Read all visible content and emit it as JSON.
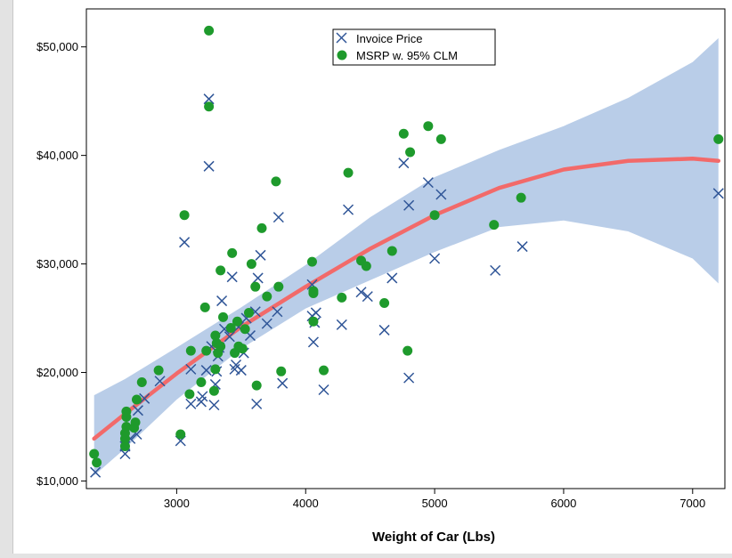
{
  "chart_data": {
    "type": "scatter",
    "xlabel": "Weight of Car (Lbs)",
    "ylabel": "",
    "xlim": [
      2300,
      7250
    ],
    "ylim": [
      9300,
      53500
    ],
    "x_ticks": [
      {
        "value": 3000,
        "label": "3000"
      },
      {
        "value": 4000,
        "label": "4000"
      },
      {
        "value": 5000,
        "label": "5000"
      },
      {
        "value": 6000,
        "label": "6000"
      },
      {
        "value": 7000,
        "label": "7000"
      }
    ],
    "y_ticks": [
      {
        "value": 10000,
        "label": "$10,000"
      },
      {
        "value": 20000,
        "label": "$20,000"
      },
      {
        "value": 30000,
        "label": "$30,000"
      },
      {
        "value": 40000,
        "label": "$40,000"
      },
      {
        "value": 50000,
        "label": "$50,000"
      }
    ],
    "grid": false,
    "legend": {
      "position": "top-center"
    },
    "series": [
      {
        "name": "Invoice Price",
        "marker": "x",
        "color": "#2f5597",
        "points": [
          [
            2370,
            10800
          ],
          [
            2600,
            12500
          ],
          [
            2600,
            13200
          ],
          [
            2640,
            13900
          ],
          [
            2690,
            14300
          ],
          [
            2700,
            16500
          ],
          [
            2750,
            17600
          ],
          [
            2870,
            19200
          ],
          [
            3030,
            13700
          ],
          [
            3060,
            32000
          ],
          [
            3110,
            20300
          ],
          [
            3110,
            17100
          ],
          [
            3190,
            17300
          ],
          [
            3200,
            17800
          ],
          [
            3230,
            20200
          ],
          [
            3250,
            45200
          ],
          [
            3250,
            39000
          ],
          [
            3270,
            22400
          ],
          [
            3290,
            17000
          ],
          [
            3300,
            18900
          ],
          [
            3310,
            20100
          ],
          [
            3320,
            21500
          ],
          [
            3330,
            22300
          ],
          [
            3350,
            26600
          ],
          [
            3370,
            24000
          ],
          [
            3410,
            23300
          ],
          [
            3430,
            28800
          ],
          [
            3450,
            20300
          ],
          [
            3460,
            20700
          ],
          [
            3480,
            24200
          ],
          [
            3500,
            20200
          ],
          [
            3520,
            21800
          ],
          [
            3540,
            25000
          ],
          [
            3570,
            23400
          ],
          [
            3610,
            25600
          ],
          [
            3620,
            17100
          ],
          [
            3630,
            28700
          ],
          [
            3650,
            30800
          ],
          [
            3700,
            24500
          ],
          [
            3780,
            25600
          ],
          [
            3790,
            34300
          ],
          [
            3820,
            19000
          ],
          [
            4050,
            28100
          ],
          [
            4050,
            25200
          ],
          [
            4060,
            22800
          ],
          [
            4070,
            24600
          ],
          [
            4080,
            25500
          ],
          [
            4140,
            18400
          ],
          [
            4280,
            24400
          ],
          [
            4330,
            35000
          ],
          [
            4430,
            27400
          ],
          [
            4480,
            27000
          ],
          [
            4610,
            23900
          ],
          [
            4670,
            28700
          ],
          [
            4760,
            39300
          ],
          [
            4800,
            35400
          ],
          [
            4800,
            19500
          ],
          [
            4950,
            37500
          ],
          [
            5000,
            30500
          ],
          [
            5050,
            36400
          ],
          [
            5470,
            29400
          ],
          [
            5680,
            31600
          ],
          [
            7200,
            36500
          ]
        ]
      },
      {
        "name": "MSRP w. 95% CLM",
        "marker": "circle",
        "color": "#1e9a2c",
        "points": [
          [
            2360,
            12500
          ],
          [
            2380,
            11700
          ],
          [
            2600,
            13200
          ],
          [
            2600,
            13900
          ],
          [
            2600,
            14400
          ],
          [
            2610,
            15000
          ],
          [
            2610,
            15900
          ],
          [
            2610,
            16400
          ],
          [
            2670,
            14900
          ],
          [
            2680,
            15400
          ],
          [
            2690,
            17500
          ],
          [
            2730,
            19100
          ],
          [
            2860,
            20200
          ],
          [
            3030,
            14300
          ],
          [
            3060,
            34500
          ],
          [
            3100,
            18000
          ],
          [
            3110,
            22000
          ],
          [
            3190,
            19100
          ],
          [
            3220,
            26000
          ],
          [
            3230,
            22000
          ],
          [
            3250,
            51500
          ],
          [
            3250,
            44500
          ],
          [
            3290,
            18300
          ],
          [
            3300,
            20300
          ],
          [
            3300,
            23400
          ],
          [
            3310,
            22700
          ],
          [
            3320,
            21800
          ],
          [
            3340,
            22400
          ],
          [
            3340,
            29400
          ],
          [
            3360,
            25100
          ],
          [
            3420,
            24100
          ],
          [
            3430,
            31000
          ],
          [
            3450,
            21800
          ],
          [
            3470,
            24700
          ],
          [
            3480,
            22400
          ],
          [
            3510,
            22200
          ],
          [
            3530,
            24000
          ],
          [
            3560,
            25500
          ],
          [
            3580,
            30000
          ],
          [
            3610,
            27900
          ],
          [
            3620,
            18800
          ],
          [
            3660,
            33300
          ],
          [
            3700,
            27000
          ],
          [
            3770,
            37600
          ],
          [
            3790,
            27900
          ],
          [
            3810,
            20100
          ],
          [
            4050,
            30200
          ],
          [
            4060,
            27500
          ],
          [
            4060,
            27300
          ],
          [
            4060,
            24700
          ],
          [
            4140,
            20200
          ],
          [
            4280,
            26900
          ],
          [
            4330,
            38400
          ],
          [
            4430,
            30300
          ],
          [
            4470,
            29800
          ],
          [
            4610,
            26400
          ],
          [
            4670,
            31200
          ],
          [
            4760,
            42000
          ],
          [
            4790,
            22000
          ],
          [
            4810,
            40300
          ],
          [
            4950,
            42700
          ],
          [
            5000,
            34500
          ],
          [
            5050,
            41500
          ],
          [
            5460,
            33600
          ],
          [
            5670,
            36100
          ],
          [
            7200,
            41500
          ]
        ]
      }
    ],
    "fit_curve": {
      "color": "#f26a6a",
      "points": [
        [
          2360,
          13900
        ],
        [
          2600,
          16200
        ],
        [
          3000,
          19900
        ],
        [
          3500,
          24200
        ],
        [
          4000,
          27900
        ],
        [
          4500,
          31400
        ],
        [
          5000,
          34500
        ],
        [
          5500,
          37000
        ],
        [
          6000,
          38700
        ],
        [
          6500,
          39500
        ],
        [
          7000,
          39700
        ],
        [
          7200,
          39500
        ]
      ]
    },
    "confidence_band": {
      "color": "#b9cde8",
      "upper": [
        [
          2360,
          17900
        ],
        [
          2600,
          19400
        ],
        [
          3000,
          22300
        ],
        [
          3500,
          26000
        ],
        [
          4000,
          29900
        ],
        [
          4500,
          34300
        ],
        [
          5000,
          38000
        ],
        [
          5500,
          40500
        ],
        [
          6000,
          42700
        ],
        [
          6500,
          45300
        ],
        [
          7000,
          48600
        ],
        [
          7200,
          50800
        ]
      ],
      "lower": [
        [
          2360,
          10500
        ],
        [
          2600,
          13000
        ],
        [
          3000,
          17500
        ],
        [
          3500,
          22200
        ],
        [
          4000,
          25900
        ],
        [
          4500,
          28500
        ],
        [
          5000,
          31100
        ],
        [
          5500,
          33400
        ],
        [
          6000,
          34000
        ],
        [
          6500,
          33000
        ],
        [
          7000,
          30500
        ],
        [
          7200,
          28200
        ]
      ]
    }
  }
}
